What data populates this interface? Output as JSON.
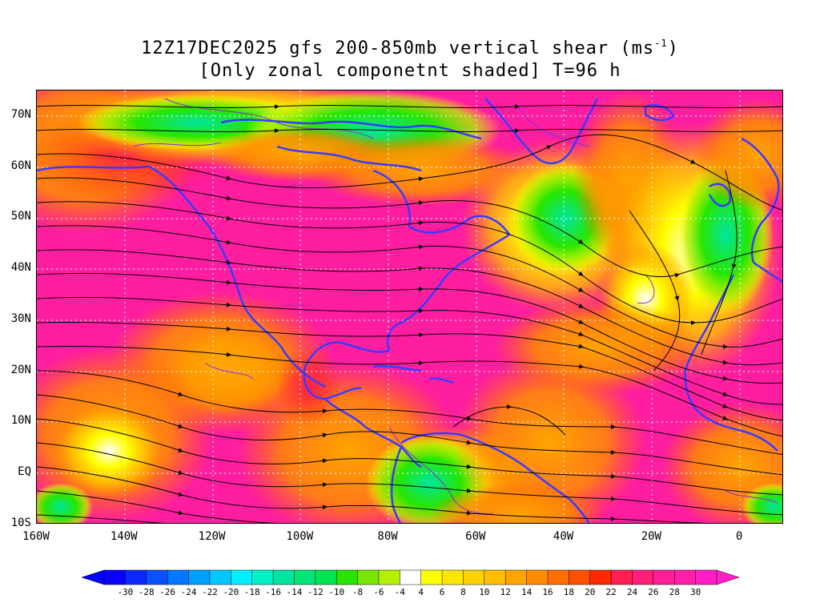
{
  "title": {
    "line1_prefix": "12Z17DEC2025 gfs 200-850mb vertical shear (ms",
    "line1_sup": "-1",
    "line1_suffix": ")",
    "line2": "[Only zonal componetnt shaded] T=96 h"
  },
  "map": {
    "lon_range": [
      -160,
      10
    ],
    "lat_range": [
      -10,
      75
    ],
    "lat_labels": [
      {
        "lat": 70,
        "text": "70N"
      },
      {
        "lat": 60,
        "text": "60N"
      },
      {
        "lat": 50,
        "text": "50N"
      },
      {
        "lat": 40,
        "text": "40N"
      },
      {
        "lat": 30,
        "text": "30N"
      },
      {
        "lat": 20,
        "text": "20N"
      },
      {
        "lat": 10,
        "text": "10N"
      },
      {
        "lat": 0,
        "text": "EQ"
      },
      {
        "lat": -10,
        "text": "10S"
      }
    ],
    "lon_labels": [
      {
        "lon": -160,
        "text": "160W"
      },
      {
        "lon": -140,
        "text": "140W"
      },
      {
        "lon": -120,
        "text": "120W"
      },
      {
        "lon": -100,
        "text": "100W"
      },
      {
        "lon": -80,
        "text": "80W"
      },
      {
        "lon": -60,
        "text": "60W"
      },
      {
        "lon": -40,
        "text": "40W"
      },
      {
        "lon": -20,
        "text": "20W"
      },
      {
        "lon": 0,
        "text": "0"
      }
    ],
    "colors": {
      "coast": "#3a3aff",
      "streamline": "#000000",
      "contour": "#8a2be2",
      "grid": "#ffffff"
    }
  },
  "colorbar": {
    "labels": [
      "-30",
      "-28",
      "-26",
      "-24",
      "-22",
      "-20",
      "-18",
      "-16",
      "-14",
      "-12",
      "-10",
      "-8",
      "-6",
      "-4",
      "4",
      "6",
      "8",
      "10",
      "12",
      "14",
      "16",
      "18",
      "20",
      "22",
      "24",
      "26",
      "28",
      "30"
    ],
    "colors": [
      "#0a00ff",
      "#0a28ff",
      "#0a50ff",
      "#0078ff",
      "#00a0ff",
      "#00c8ff",
      "#00f0ff",
      "#00f0c8",
      "#00e6a0",
      "#00e678",
      "#00e650",
      "#28e600",
      "#78e600",
      "#b4f000",
      "#ffffff",
      "#ffff00",
      "#ffe600",
      "#ffd200",
      "#ffbe00",
      "#ffa500",
      "#ff8c00",
      "#ff6e00",
      "#ff5000",
      "#ff2800",
      "#ff1e50",
      "#ff1e78",
      "#ff1e96",
      "#ff1eaa",
      "#ff1ec8"
    ]
  }
}
